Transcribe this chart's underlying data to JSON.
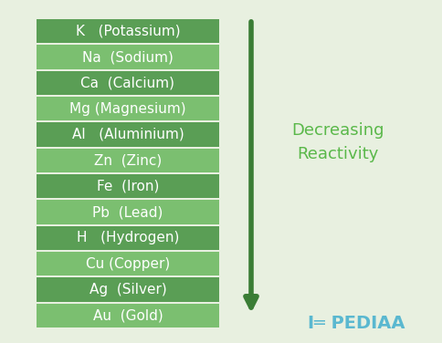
{
  "background_color": "#e8f0e0",
  "elements": [
    "K   (Potassium)",
    "Na  (Sodium)",
    "Ca  (Calcium)",
    "Mg (Magnesium)",
    "Al   (Aluminium)",
    "Zn  (Zinc)",
    "Fe  (Iron)",
    "Pb  (Lead)",
    "H   (Hydrogen)",
    "Cu (Copper)",
    "Ag  (Silver)",
    "Au  (Gold)"
  ],
  "row_color_dark": "#5a9e55",
  "row_color_light": "#7bbf70",
  "text_color": "#ffffff",
  "border_color": "#d0e8c8",
  "arrow_color": "#3a7d35",
  "label_color": "#5ab84a",
  "label_text": "Decreasing\nReactivity",
  "pediaa_color": "#5ab8d0",
  "pediaa_text": "I≡ PEDIAA",
  "font_size": 11,
  "label_font_size": 13
}
